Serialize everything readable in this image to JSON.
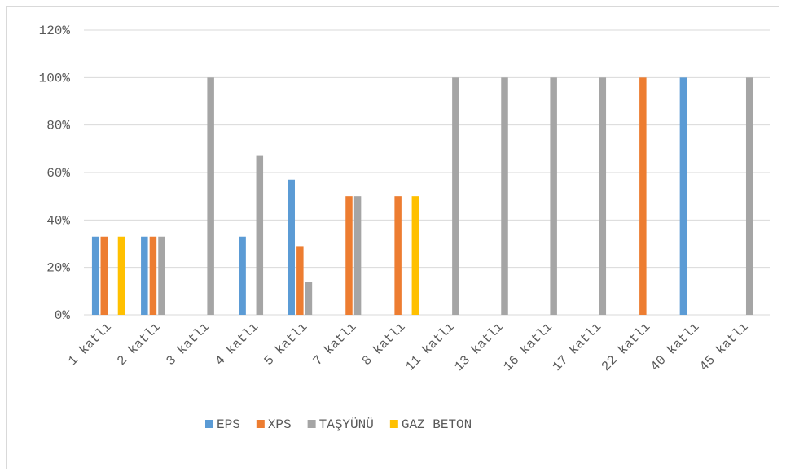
{
  "chart_data": {
    "type": "bar",
    "categories": [
      "1 katlı",
      "2 katlı",
      "3 katlı",
      "4 katlı",
      "5 katlı",
      "7 katlı",
      "8 katlı",
      "11 katlı",
      "13 katlı",
      "16 katlı",
      "17 katlı",
      "22 katlı",
      "40 katlı",
      "45 katlı"
    ],
    "series": [
      {
        "name": "EPS",
        "color": "#5b9bd5",
        "values": [
          33,
          33,
          0,
          33,
          57,
          0,
          0,
          0,
          0,
          0,
          0,
          0,
          100,
          0
        ]
      },
      {
        "name": "XPS",
        "color": "#ed7d31",
        "values": [
          33,
          33,
          0,
          0,
          29,
          50,
          50,
          0,
          0,
          0,
          0,
          100,
          0,
          0
        ]
      },
      {
        "name": "TAŞYÜNÜ",
        "color": "#a5a5a5",
        "values": [
          0,
          33,
          100,
          67,
          14,
          50,
          0,
          100,
          100,
          100,
          100,
          0,
          0,
          100
        ]
      },
      {
        "name": "GAZ BETON",
        "color": "#ffc000",
        "values": [
          33,
          0,
          0,
          0,
          0,
          0,
          50,
          0,
          0,
          0,
          0,
          0,
          0,
          0
        ]
      }
    ],
    "ylim": [
      0,
      120
    ],
    "yticks": [
      {
        "value": 0,
        "label": "0%"
      },
      {
        "value": 20,
        "label": "20%"
      },
      {
        "value": 40,
        "label": "40%"
      },
      {
        "value": 60,
        "label": "60%"
      },
      {
        "value": 80,
        "label": "80%"
      },
      {
        "value": 100,
        "label": "100%"
      },
      {
        "value": 120,
        "label": "120%"
      }
    ],
    "grid": true,
    "legend": "bottom"
  }
}
